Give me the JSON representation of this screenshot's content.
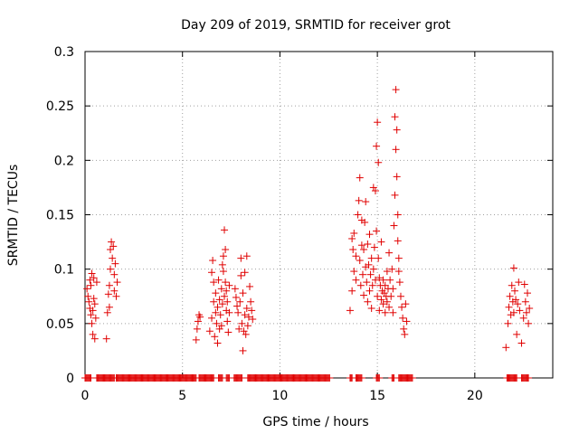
{
  "chart_data": {
    "type": "scatter",
    "title": "Day 209 of 2019, SRMTID for receiver grot",
    "xlabel": "GPS time / hours",
    "ylabel": "SRMTID / TECUs",
    "xlim": [
      0,
      24
    ],
    "ylim": [
      0,
      0.3
    ],
    "xticks": [
      0,
      5,
      10,
      15,
      20
    ],
    "yticks": [
      0,
      0.05,
      0.1,
      0.15,
      0.2,
      0.25,
      0.3
    ],
    "xtick_labels": [
      "0",
      "5",
      "10",
      "15",
      "20"
    ],
    "ytick_labels": [
      "0",
      "0.05",
      "0.1",
      "0.15",
      "0.2",
      "0.25",
      "0.3"
    ],
    "grid": true,
    "marker": "+",
    "series": [
      {
        "name": "SRMTID",
        "color": "#e00000",
        "points": [
          [
            0.1,
            0.082
          ],
          [
            0.15,
            0.075
          ],
          [
            0.2,
            0.07
          ],
          [
            0.25,
            0.064
          ],
          [
            0.25,
            0.09
          ],
          [
            0.3,
            0.058
          ],
          [
            0.3,
            0.085
          ],
          [
            0.35,
            0.05
          ],
          [
            0.35,
            0.096
          ],
          [
            0.4,
            0.062
          ],
          [
            0.4,
            0.04
          ],
          [
            0.45,
            0.092
          ],
          [
            0.45,
            0.073
          ],
          [
            0.5,
            0.036
          ],
          [
            0.5,
            0.068
          ],
          [
            0.55,
            0.055
          ],
          [
            0.6,
            0.088
          ],
          [
            1.1,
            0.036
          ],
          [
            1.15,
            0.06
          ],
          [
            1.2,
            0.077
          ],
          [
            1.25,
            0.065
          ],
          [
            1.25,
            0.085
          ],
          [
            1.3,
            0.1
          ],
          [
            1.3,
            0.118
          ],
          [
            1.35,
            0.125
          ],
          [
            1.4,
            0.11
          ],
          [
            1.45,
            0.121
          ],
          [
            1.5,
            0.095
          ],
          [
            1.5,
            0.08
          ],
          [
            1.55,
            0.105
          ],
          [
            1.6,
            0.075
          ],
          [
            1.65,
            0.088
          ],
          [
            5.7,
            0.035
          ],
          [
            5.75,
            0.045
          ],
          [
            5.8,
            0.052
          ],
          [
            5.85,
            0.058
          ],
          [
            5.9,
            0.056
          ],
          [
            6.4,
            0.043
          ],
          [
            6.5,
            0.055
          ],
          [
            6.5,
            0.097
          ],
          [
            6.55,
            0.108
          ],
          [
            6.6,
            0.07
          ],
          [
            6.6,
            0.088
          ],
          [
            6.65,
            0.038
          ],
          [
            6.7,
            0.06
          ],
          [
            6.7,
            0.078
          ],
          [
            6.75,
            0.05
          ],
          [
            6.8,
            0.032
          ],
          [
            6.8,
            0.065
          ],
          [
            6.85,
            0.09
          ],
          [
            6.9,
            0.045
          ],
          [
            6.9,
            0.072
          ],
          [
            6.95,
            0.058
          ],
          [
            7.0,
            0.082
          ],
          [
            7.0,
            0.048
          ],
          [
            7.05,
            0.068
          ],
          [
            7.05,
            0.104
          ],
          [
            7.1,
            0.098
          ],
          [
            7.1,
            0.112
          ],
          [
            7.15,
            0.136
          ],
          [
            7.15,
            0.075
          ],
          [
            7.2,
            0.088
          ],
          [
            7.2,
            0.118
          ],
          [
            7.25,
            0.062
          ],
          [
            7.25,
            0.08
          ],
          [
            7.3,
            0.052
          ],
          [
            7.3,
            0.07
          ],
          [
            7.35,
            0.042
          ],
          [
            7.4,
            0.085
          ],
          [
            7.4,
            0.06
          ],
          [
            7.7,
            0.082
          ],
          [
            7.75,
            0.074
          ],
          [
            7.8,
            0.066
          ],
          [
            7.85,
            0.06
          ],
          [
            7.9,
            0.045
          ],
          [
            7.95,
            0.07
          ],
          [
            8.0,
            0.094
          ],
          [
            8.0,
            0.11
          ],
          [
            8.05,
            0.05
          ],
          [
            8.1,
            0.025
          ],
          [
            8.1,
            0.078
          ],
          [
            8.15,
            0.043
          ],
          [
            8.2,
            0.058
          ],
          [
            8.2,
            0.097
          ],
          [
            8.25,
            0.04
          ],
          [
            8.3,
            0.064
          ],
          [
            8.3,
            0.112
          ],
          [
            8.35,
            0.048
          ],
          [
            8.4,
            0.056
          ],
          [
            8.45,
            0.084
          ],
          [
            8.5,
            0.07
          ],
          [
            8.55,
            0.062
          ],
          [
            8.6,
            0.054
          ],
          [
            13.6,
            0.062
          ],
          [
            13.7,
            0.08
          ],
          [
            13.7,
            0.128
          ],
          [
            13.75,
            0.118
          ],
          [
            13.8,
            0.098
          ],
          [
            13.8,
            0.133
          ],
          [
            13.9,
            0.09
          ],
          [
            13.9,
            0.112
          ],
          [
            14.0,
            0.15
          ],
          [
            14.05,
            0.163
          ],
          [
            14.1,
            0.184
          ],
          [
            14.1,
            0.108
          ],
          [
            14.15,
            0.085
          ],
          [
            14.2,
            0.145
          ],
          [
            14.2,
            0.122
          ],
          [
            14.25,
            0.095
          ],
          [
            14.3,
            0.076
          ],
          [
            14.3,
            0.118
          ],
          [
            14.35,
            0.143
          ],
          [
            14.4,
            0.102
          ],
          [
            14.4,
            0.162
          ],
          [
            14.45,
            0.088
          ],
          [
            14.5,
            0.123
          ],
          [
            14.5,
            0.07
          ],
          [
            14.55,
            0.104
          ],
          [
            14.6,
            0.08
          ],
          [
            14.6,
            0.132
          ],
          [
            14.65,
            0.095
          ],
          [
            14.7,
            0.11
          ],
          [
            14.7,
            0.064
          ],
          [
            14.75,
            0.085
          ],
          [
            14.8,
            0.175
          ],
          [
            14.8,
            0.1
          ],
          [
            14.85,
            0.12
          ],
          [
            14.9,
            0.172
          ],
          [
            14.9,
            0.09
          ],
          [
            14.95,
            0.213
          ],
          [
            14.95,
            0.135
          ],
          [
            15.0,
            0.235
          ],
          [
            15.0,
            0.075
          ],
          [
            15.05,
            0.198
          ],
          [
            15.05,
            0.11
          ],
          [
            15.1,
            0.062
          ],
          [
            15.1,
            0.092
          ],
          [
            15.15,
            0.085
          ],
          [
            15.2,
            0.072
          ],
          [
            15.2,
            0.125
          ],
          [
            15.25,
            0.08
          ],
          [
            15.3,
            0.068
          ],
          [
            15.3,
            0.09
          ],
          [
            15.35,
            0.078
          ],
          [
            15.4,
            0.06
          ],
          [
            15.4,
            0.085
          ],
          [
            15.45,
            0.075
          ],
          [
            15.5,
            0.07
          ],
          [
            15.5,
            0.098
          ],
          [
            15.55,
            0.082
          ],
          [
            15.6,
            0.065
          ],
          [
            15.6,
            0.115
          ],
          [
            15.65,
            0.09
          ],
          [
            15.7,
            0.075
          ],
          [
            15.75,
            0.1
          ],
          [
            15.8,
            0.06
          ],
          [
            15.8,
            0.082
          ],
          [
            15.85,
            0.14
          ],
          [
            15.9,
            0.168
          ],
          [
            15.9,
            0.24
          ],
          [
            15.95,
            0.265
          ],
          [
            15.95,
            0.21
          ],
          [
            16.0,
            0.228
          ],
          [
            16.0,
            0.185
          ],
          [
            16.05,
            0.15
          ],
          [
            16.05,
            0.126
          ],
          [
            16.1,
            0.11
          ],
          [
            16.1,
            0.098
          ],
          [
            16.15,
            0.088
          ],
          [
            16.2,
            0.075
          ],
          [
            16.25,
            0.065
          ],
          [
            16.3,
            0.055
          ],
          [
            16.35,
            0.045
          ],
          [
            16.4,
            0.04
          ],
          [
            16.45,
            0.068
          ],
          [
            16.5,
            0.052
          ],
          [
            21.6,
            0.028
          ],
          [
            21.7,
            0.05
          ],
          [
            21.75,
            0.065
          ],
          [
            21.8,
            0.075
          ],
          [
            21.85,
            0.058
          ],
          [
            21.9,
            0.085
          ],
          [
            21.95,
            0.07
          ],
          [
            22.0,
            0.101
          ],
          [
            22.0,
            0.06
          ],
          [
            22.05,
            0.08
          ],
          [
            22.1,
            0.072
          ],
          [
            22.15,
            0.04
          ],
          [
            22.2,
            0.068
          ],
          [
            22.25,
            0.088
          ],
          [
            22.3,
            0.062
          ],
          [
            22.4,
            0.032
          ],
          [
            22.5,
            0.055
          ],
          [
            22.55,
            0.086
          ],
          [
            22.6,
            0.07
          ],
          [
            22.65,
            0.06
          ],
          [
            22.7,
            0.078
          ],
          [
            22.75,
            0.05
          ],
          [
            22.8,
            0.064
          ]
        ],
        "zero_ranges": [
          [
            0.0,
            0.3
          ],
          [
            0.6,
            1.5
          ],
          [
            1.6,
            5.7
          ],
          [
            5.85,
            6.6
          ],
          [
            6.85,
            7.05
          ],
          [
            7.25,
            7.4
          ],
          [
            7.65,
            8.05
          ],
          [
            8.35,
            12.55
          ],
          [
            13.6,
            13.7
          ],
          [
            13.9,
            14.2
          ],
          [
            14.95,
            15.1
          ],
          [
            15.75,
            15.85
          ],
          [
            16.1,
            16.8
          ],
          [
            21.65,
            22.15
          ],
          [
            22.4,
            22.75
          ]
        ]
      }
    ]
  }
}
